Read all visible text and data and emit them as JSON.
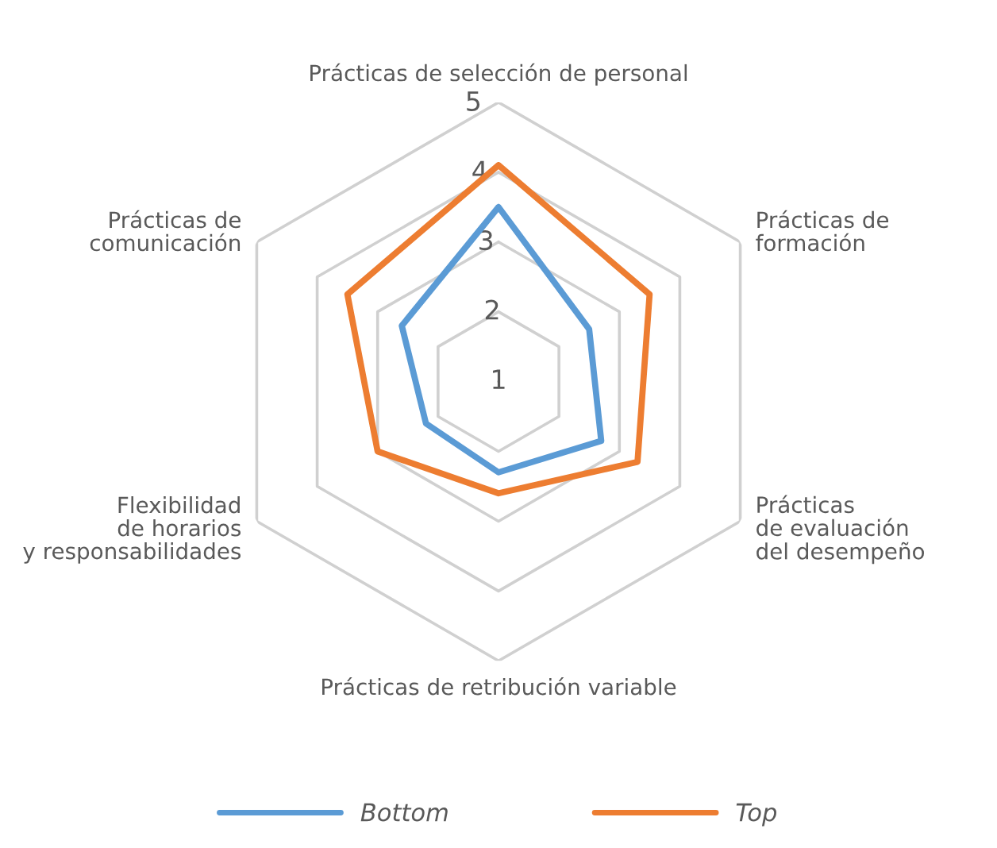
{
  "chart_data": {
    "type": "radar",
    "categories": [
      "Prácticas de selección de personal",
      "Prácticas de\nformación",
      "Prácticas\nde evaluación\ndel desempeño",
      "Prácticas de retribución variable",
      "Flexibilidad\nde horarios\ny responsabilidades",
      "Prácticas de\ncomunicación"
    ],
    "series": [
      {
        "name": "Bottom",
        "color": "#5b9bd5",
        "values": [
          3.5,
          2.5,
          2.7,
          2.3,
          2.2,
          2.6
        ]
      },
      {
        "name": "Top",
        "color": "#ed7d31",
        "values": [
          4.1,
          3.5,
          3.3,
          2.6,
          3.0,
          3.5
        ]
      }
    ],
    "ylim": [
      1,
      5
    ],
    "yticks": [
      1,
      2,
      3,
      4,
      5
    ],
    "grid": true,
    "legend": "bottom",
    "marker": "none",
    "line_style": "solid"
  }
}
